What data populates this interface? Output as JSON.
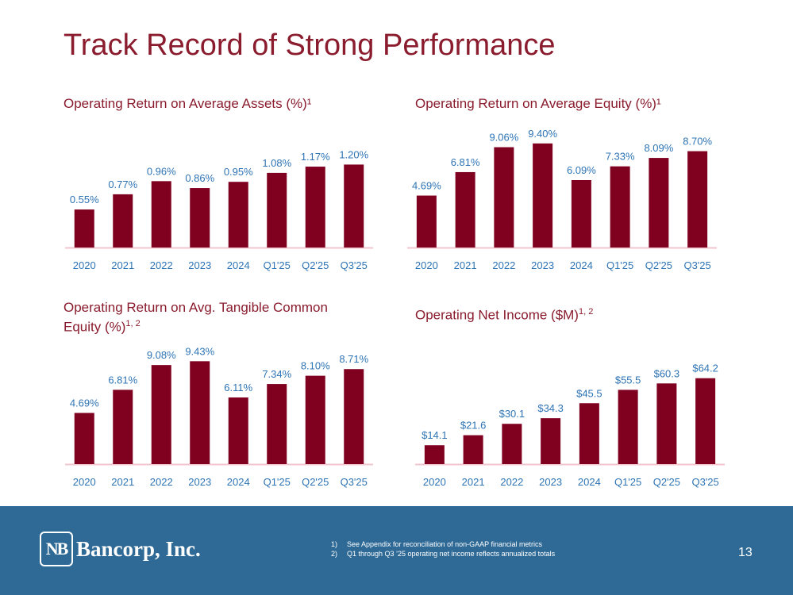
{
  "title": "Track Record of Strong Performance",
  "colors": {
    "bar": "#800020",
    "label": "#2e74b5",
    "tick": "#2e74b5",
    "title": "#8a1c2e",
    "footer": "#2f6a96",
    "baseline": "#f2c6cf"
  },
  "chart_data": [
    {
      "type": "bar",
      "title": "Operating Return on Average Assets (%)",
      "title_sup": "¹",
      "categories": [
        "2020",
        "2021",
        "2022",
        "2023",
        "2024",
        "Q1'25",
        "Q2'25",
        "Q3'25"
      ],
      "values": [
        0.55,
        0.77,
        0.96,
        0.86,
        0.95,
        1.08,
        1.17,
        1.2
      ],
      "labels": [
        "0.55%",
        "0.77%",
        "0.96%",
        "0.86%",
        "0.95%",
        "1.08%",
        "1.17%",
        "1.20%"
      ],
      "ylim": [
        0,
        1.4
      ]
    },
    {
      "type": "bar",
      "title": "Operating Return on Average Equity (%)",
      "title_sup": "¹",
      "categories": [
        "2020",
        "2021",
        "2022",
        "2023",
        "2024",
        "Q1'25",
        "Q2'25",
        "Q3'25"
      ],
      "values": [
        4.69,
        6.81,
        9.06,
        9.4,
        6.09,
        7.33,
        8.09,
        8.7
      ],
      "labels": [
        "4.69%",
        "6.81%",
        "9.06%",
        "9.40%",
        "6.09%",
        "7.33%",
        "8.09%",
        "8.70%"
      ],
      "ylim": [
        0,
        9.6
      ]
    },
    {
      "type": "bar",
      "title": "Operating Return on Avg. Tangible Common Equity (%)",
      "title_sup": "1, 2",
      "categories": [
        "2020",
        "2021",
        "2022",
        "2023",
        "2024",
        "Q1'25",
        "Q2'25",
        "Q3'25"
      ],
      "values": [
        4.69,
        6.81,
        9.08,
        9.43,
        6.11,
        7.34,
        8.1,
        8.71
      ],
      "labels": [
        "4.69%",
        "6.81%",
        "9.08%",
        "9.43%",
        "6.11%",
        "7.34%",
        "8.10%",
        "8.71%"
      ],
      "ylim": [
        0,
        9.6
      ]
    },
    {
      "type": "bar",
      "title": "Operating Net Income ($M)",
      "title_sup": "1, 2",
      "categories": [
        "2020",
        "2021",
        "2022",
        "2023",
        "2024",
        "Q1'25",
        "Q2'25",
        "Q3'25"
      ],
      "values": [
        14.1,
        21.6,
        30.1,
        34.3,
        45.5,
        55.5,
        60.3,
        64.2
      ],
      "labels": [
        "$14.1",
        "$21.6",
        "$30.1",
        "$34.3",
        "$45.5",
        "$55.5",
        "$60.3",
        "$64.2"
      ],
      "ylim": [
        0,
        67
      ]
    }
  ],
  "footer": {
    "logo_mark": "NB",
    "logo_text": "Bancorp, Inc.",
    "notes": [
      {
        "num": "1)",
        "text": "See Appendix for reconciliation of non-GAAP financial metrics"
      },
      {
        "num": "2)",
        "text": "Q1 through Q3 ’25 operating net income reflects annualized totals"
      }
    ],
    "page_number": "13"
  }
}
